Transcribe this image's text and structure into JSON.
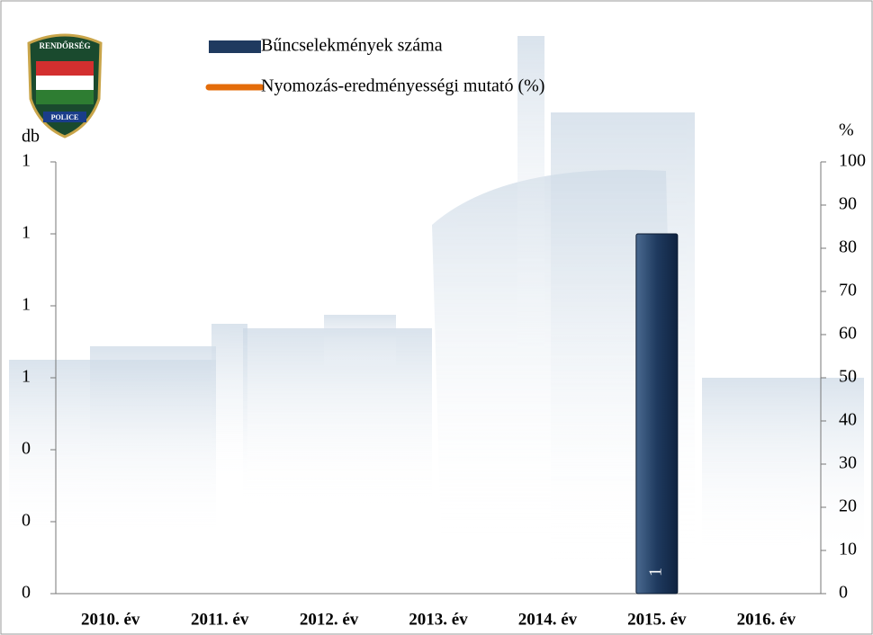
{
  "logo": {
    "top": "RENDŐRSÉG",
    "bottom": "POLICE"
  },
  "chart_data": {
    "type": "bar",
    "categories": [
      "2010. év",
      "2011. év",
      "2012. év",
      "2013. év",
      "2014. év",
      "2015. év",
      "2016. év"
    ],
    "ylabel": "db",
    "y2label": "%",
    "series": [
      {
        "name": "Bűncselekmények száma",
        "type": "bar",
        "color": "#1f3a5f",
        "values": [
          null,
          null,
          null,
          null,
          null,
          1,
          null
        ]
      },
      {
        "name": "Nyomozás-eredményességi mutató (%)",
        "type": "line",
        "axis": "y2",
        "color": "#e46c0a",
        "values": [
          null,
          null,
          null,
          null,
          null,
          null,
          null
        ]
      }
    ],
    "ylim": [
      0,
      1.2
    ],
    "yticks": [
      0,
      {
        "value": 0.2,
        "label": "0"
      },
      {
        "value": 0.4,
        "label": "0"
      },
      {
        "value": 0.6,
        "label": "1"
      },
      {
        "value": 0.8,
        "label": "1"
      },
      1,
      {
        "value": 1.2,
        "label": "1"
      }
    ],
    "y2lim": [
      0,
      100
    ],
    "y2ticks": [
      0,
      10,
      20,
      30,
      40,
      50,
      60,
      70,
      80,
      90,
      100
    ]
  }
}
